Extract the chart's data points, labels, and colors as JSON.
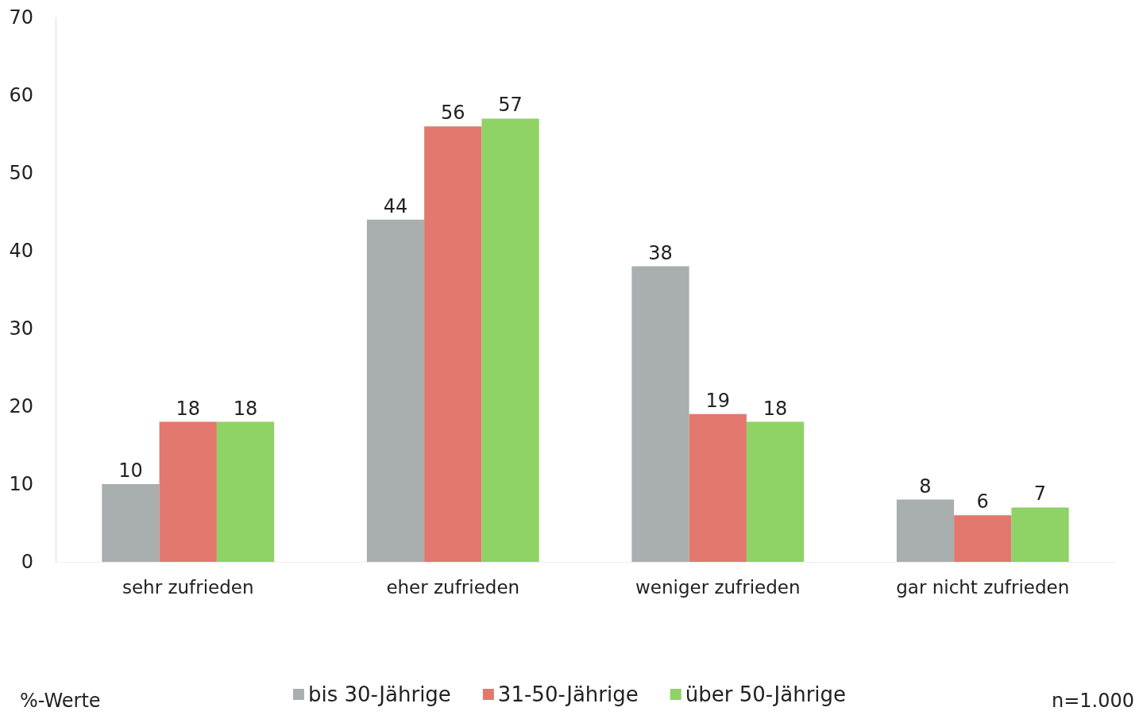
{
  "chart_data": {
    "type": "bar",
    "categories": [
      "sehr zufrieden",
      "eher zufrieden",
      "weniger zufrieden",
      "gar nicht zufrieden"
    ],
    "series": [
      {
        "name": "bis 30-Jährige",
        "color": "#a9aeae",
        "values": [
          10,
          44,
          38,
          8
        ]
      },
      {
        "name": "31-50-Jährige",
        "color": "#e2786d",
        "values": [
          18,
          56,
          19,
          6
        ]
      },
      {
        "name": "über 50-Jährige",
        "color": "#8fd266",
        "values": [
          18,
          57,
          18,
          7
        ]
      }
    ],
    "ylim": [
      0,
      70
    ],
    "yticks": [
      0,
      10,
      20,
      30,
      40,
      50,
      60,
      70
    ],
    "grid": false,
    "data_labels": true,
    "legend": "bottom",
    "annotations": [
      "%-Werte",
      "n=1.000"
    ]
  }
}
